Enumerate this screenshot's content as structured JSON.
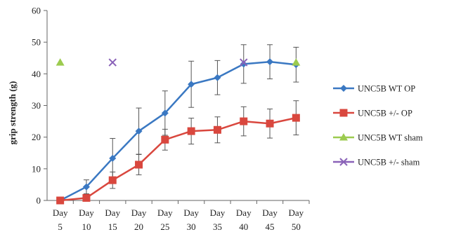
{
  "chart_data": {
    "type": "line",
    "title": "",
    "xlabel": "",
    "ylabel": "grip strength (g)",
    "ylim": [
      0,
      60
    ],
    "yticks": [
      0,
      10,
      20,
      30,
      40,
      50,
      60
    ],
    "grid": false,
    "legend_position": "right",
    "categories": [
      {
        "line1": "Day",
        "line2": "5"
      },
      {
        "line1": "Day",
        "line2": "10"
      },
      {
        "line1": "Day",
        "line2": "15"
      },
      {
        "line1": "Day",
        "line2": "20"
      },
      {
        "line1": "Day",
        "line2": "25"
      },
      {
        "line1": "Day",
        "line2": "30"
      },
      {
        "line1": "Day",
        "line2": "35"
      },
      {
        "line1": "Day",
        "line2": "40"
      },
      {
        "line1": "Day",
        "line2": "45"
      },
      {
        "line1": "Day",
        "line2": "50"
      }
    ],
    "series": [
      {
        "name": "UNC5B WT OP",
        "color": "#3a78c2",
        "marker": "diamond",
        "line": true,
        "values": [
          0,
          4.3,
          13.3,
          21.9,
          27.6,
          36.7,
          38.8,
          43.1,
          43.8,
          42.9
        ],
        "errors": [
          0,
          2.2,
          6.3,
          7.3,
          7.0,
          7.3,
          5.4,
          6.1,
          5.4,
          5.5
        ]
      },
      {
        "name": "UNC5B +/- OP",
        "color": "#d9473e",
        "marker": "square",
        "line": true,
        "values": [
          0,
          0.8,
          6.4,
          11.3,
          19.2,
          21.9,
          22.3,
          25.0,
          24.3,
          26.1
        ],
        "errors": [
          0,
          0.5,
          2.6,
          3.2,
          3.3,
          4.1,
          4.1,
          4.6,
          4.6,
          5.4
        ]
      },
      {
        "name": "UNC5B WT sham",
        "color": "#9ccb4f",
        "marker": "triangle",
        "line": false,
        "values": [
          43.6,
          null,
          null,
          null,
          null,
          null,
          null,
          null,
          null,
          43.6
        ],
        "errors": [
          0,
          0,
          0,
          0,
          0,
          0,
          0,
          0,
          0,
          0
        ]
      },
      {
        "name": "UNC5B +/- sham",
        "color": "#8a62b8",
        "marker": "x",
        "line": false,
        "values": [
          null,
          null,
          43.6,
          null,
          null,
          null,
          null,
          43.6,
          null,
          null
        ],
        "errors": [
          0,
          0,
          0,
          0,
          0,
          0,
          0,
          0,
          0,
          0
        ]
      }
    ]
  }
}
